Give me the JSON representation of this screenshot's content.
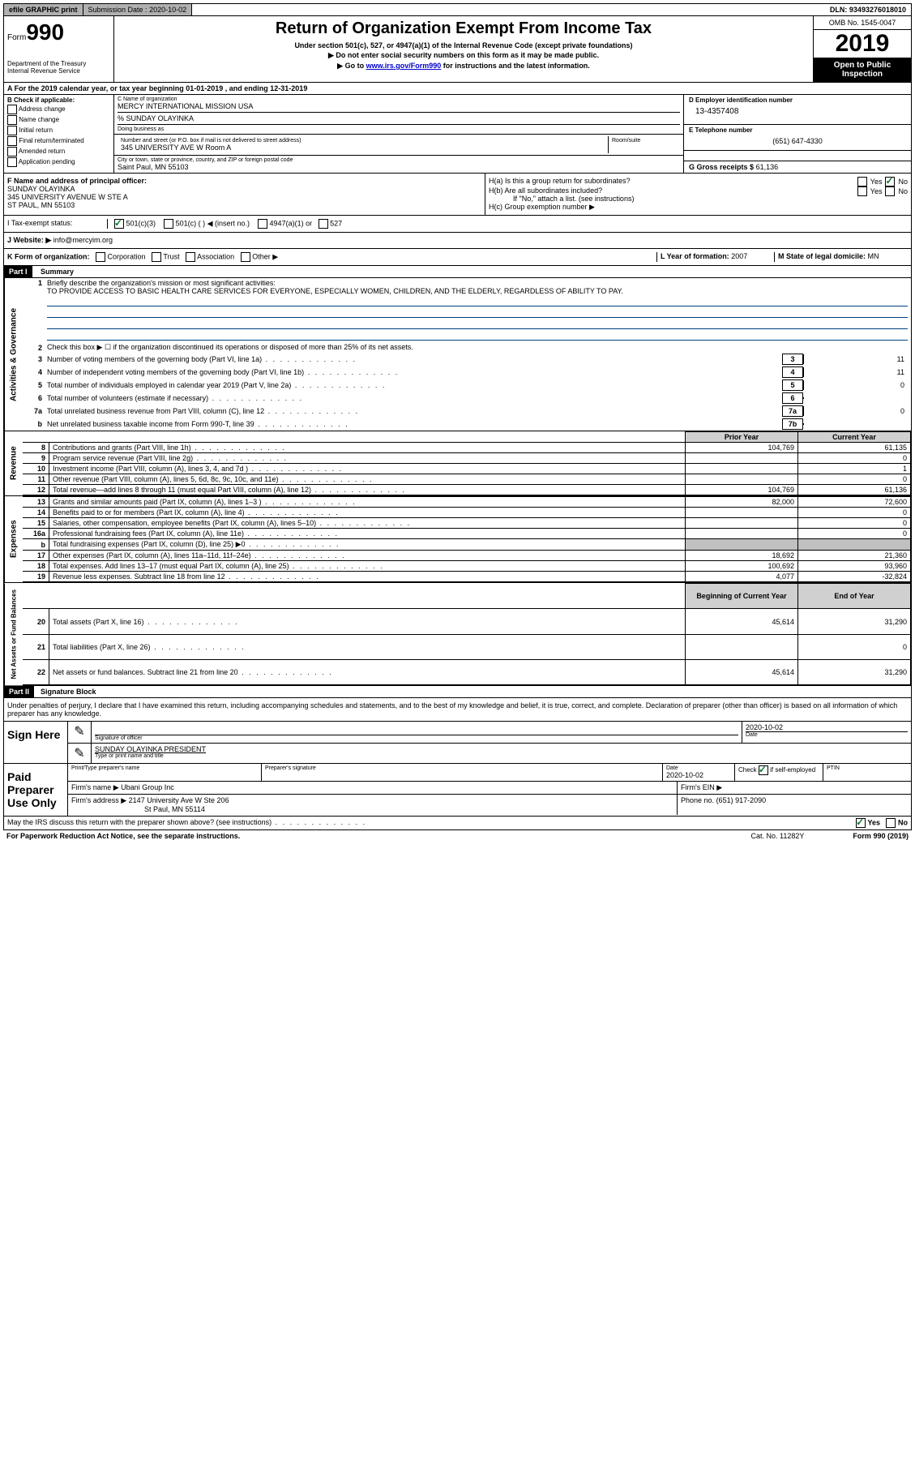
{
  "topbar": {
    "efile": "efile GRAPHIC print",
    "subdate_label": "Submission Date :",
    "subdate": "2020-10-02",
    "dln_label": "DLN:",
    "dln": "93493276018010"
  },
  "header": {
    "form_label": "Form",
    "form_num": "990",
    "dept": "Department of the Treasury\nInternal Revenue Service",
    "title": "Return of Organization Exempt From Income Tax",
    "sub": "Under section 501(c), 527, or 4947(a)(1) of the Internal Revenue Code (except private foundations)",
    "note1": "▶ Do not enter social security numbers on this form as it may be made public.",
    "note2_pre": "▶ Go to ",
    "note2_link": "www.irs.gov/Form990",
    "note2_post": " for instructions and the latest information.",
    "omb": "OMB No. 1545-0047",
    "year": "2019",
    "open": "Open to Public Inspection"
  },
  "rowA": "A For the 2019 calendar year, or tax year beginning 01-01-2019   , and ending 12-31-2019",
  "boxB": {
    "label": "B Check if applicable:",
    "items": [
      "Address change",
      "Name change",
      "Initial return",
      "Final return/terminated",
      "Amended return",
      "Application pending"
    ]
  },
  "boxC": {
    "name_label": "C Name of organization",
    "name": "MERCY INTERNATIONAL MISSION USA",
    "care_of": "% SUNDAY OLAYINKA",
    "dba_label": "Doing business as",
    "addr_label": "Number and street (or P.O. box if mail is not delivered to street address)",
    "addr": "345 UNIVERSITY AVE W Room A",
    "room_label": "Room/suite",
    "city_label": "City or town, state or province, country, and ZIP or foreign postal code",
    "city": "Saint Paul, MN  55103"
  },
  "boxD": {
    "label": "D Employer identification number",
    "val": "13-4357408"
  },
  "boxE": {
    "label": "E Telephone number",
    "val": "(651) 647-4330"
  },
  "boxG": {
    "label": "G Gross receipts $",
    "val": "61,136"
  },
  "boxF": {
    "label": "F  Name and address of principal officer:",
    "name": "SUNDAY OLAYINKA",
    "addr1": "345 UNIVERSITY AVENUE W STE A",
    "addr2": "ST PAUL, MN  55103"
  },
  "boxH": {
    "a": "H(a)  Is this a group return for subordinates?",
    "b": "H(b)  Are all subordinates included?",
    "b_note": "If \"No,\" attach a list. (see instructions)",
    "c": "H(c)  Group exemption number ▶"
  },
  "rowI": {
    "label": "I  Tax-exempt status:",
    "opts": [
      "501(c)(3)",
      "501(c) (  ) ◀ (insert no.)",
      "4947(a)(1) or",
      "527"
    ]
  },
  "rowJ": {
    "label": "J  Website: ▶",
    "val": "info@mercyim.org"
  },
  "rowK": {
    "label": "K Form of organization:",
    "opts": [
      "Corporation",
      "Trust",
      "Association",
      "Other ▶"
    ],
    "L_label": "L Year of formation:",
    "L_val": "2007",
    "M_label": "M State of legal domicile:",
    "M_val": "MN"
  },
  "part1": {
    "title": "Part I    Summary",
    "line1_label": "Briefly describe the organization's mission or most significant activities:",
    "mission": "TO PROVIDE ACCESS TO BASIC HEALTH CARE SERVICES FOR EVERYONE, ESPECIALLY WOMEN, CHILDREN, AND THE ELDERLY, REGARDLESS OF ABILITY TO PAY.",
    "line2": "Check this box ▶ ☐  if the organization discontinued its operations or disposed of more than 25% of its net assets.",
    "lines_gov": [
      {
        "n": "3",
        "t": "Number of voting members of the governing body (Part VI, line 1a)",
        "box": "3",
        "v": "11"
      },
      {
        "n": "4",
        "t": "Number of independent voting members of the governing body (Part VI, line 1b)",
        "box": "4",
        "v": "11"
      },
      {
        "n": "5",
        "t": "Total number of individuals employed in calendar year 2019 (Part V, line 2a)",
        "box": "5",
        "v": "0"
      },
      {
        "n": "6",
        "t": "Total number of volunteers (estimate if necessary)",
        "box": "6",
        "v": ""
      },
      {
        "n": "7a",
        "t": "Total unrelated business revenue from Part VIII, column (C), line 12",
        "box": "7a",
        "v": "0"
      },
      {
        "n": "b",
        "t": "Net unrelated business taxable income from Form 990-T, line 39",
        "box": "7b",
        "v": ""
      }
    ],
    "col_prior": "Prior Year",
    "col_current": "Current Year",
    "revenue": [
      {
        "n": "8",
        "t": "Contributions and grants (Part VIII, line 1h)",
        "p": "104,769",
        "c": "61,135"
      },
      {
        "n": "9",
        "t": "Program service revenue (Part VIII, line 2g)",
        "p": "",
        "c": "0"
      },
      {
        "n": "10",
        "t": "Investment income (Part VIII, column (A), lines 3, 4, and 7d )",
        "p": "",
        "c": "1"
      },
      {
        "n": "11",
        "t": "Other revenue (Part VIII, column (A), lines 5, 6d, 8c, 9c, 10c, and 11e)",
        "p": "",
        "c": "0"
      },
      {
        "n": "12",
        "t": "Total revenue—add lines 8 through 11 (must equal Part VIII, column (A), line 12)",
        "p": "104,769",
        "c": "61,136"
      }
    ],
    "expenses": [
      {
        "n": "13",
        "t": "Grants and similar amounts paid (Part IX, column (A), lines 1–3 )",
        "p": "82,000",
        "c": "72,600"
      },
      {
        "n": "14",
        "t": "Benefits paid to or for members (Part IX, column (A), line 4)",
        "p": "",
        "c": "0"
      },
      {
        "n": "15",
        "t": "Salaries, other compensation, employee benefits (Part IX, column (A), lines 5–10)",
        "p": "",
        "c": "0"
      },
      {
        "n": "16a",
        "t": "Professional fundraising fees (Part IX, column (A), line 11e)",
        "p": "",
        "c": "0"
      },
      {
        "n": "b",
        "t": "Total fundraising expenses (Part IX, column (D), line 25) ▶0",
        "p": "shaded",
        "c": "shaded"
      },
      {
        "n": "17",
        "t": "Other expenses (Part IX, column (A), lines 11a–11d, 11f–24e)",
        "p": "18,692",
        "c": "21,360"
      },
      {
        "n": "18",
        "t": "Total expenses. Add lines 13–17 (must equal Part IX, column (A), line 25)",
        "p": "100,692",
        "c": "93,960"
      },
      {
        "n": "19",
        "t": "Revenue less expenses. Subtract line 18 from line 12",
        "p": "4,077",
        "c": "-32,824"
      }
    ],
    "col_begin": "Beginning of Current Year",
    "col_end": "End of Year",
    "netassets": [
      {
        "n": "20",
        "t": "Total assets (Part X, line 16)",
        "p": "45,614",
        "c": "31,290"
      },
      {
        "n": "21",
        "t": "Total liabilities (Part X, line 26)",
        "p": "",
        "c": "0"
      },
      {
        "n": "22",
        "t": "Net assets or fund balances. Subtract line 21 from line 20",
        "p": "45,614",
        "c": "31,290"
      }
    ],
    "vert_gov": "Activities & Governance",
    "vert_rev": "Revenue",
    "vert_exp": "Expenses",
    "vert_net": "Net Assets or\nFund Balances"
  },
  "part2": {
    "title": "Part II    Signature Block",
    "decl": "Under penalties of perjury, I declare that I have examined this return, including accompanying schedules and statements, and to the best of my knowledge and belief, it is true, correct, and complete. Declaration of preparer (other than officer) is based on all information of which preparer has any knowledge.",
    "sign_here": "Sign Here",
    "sig_officer": "Signature of officer",
    "date_label": "Date",
    "sig_date": "2020-10-02",
    "officer_name": "SUNDAY OLAYINKA  PRESIDENT",
    "type_name": "Type or print name and title",
    "paid_prep": "Paid Preparer Use Only",
    "prep_name_label": "Print/Type preparer's name",
    "prep_sig_label": "Preparer's signature",
    "prep_date": "2020-10-02",
    "check_self": "Check ☑ if self-employed",
    "ptin": "PTIN",
    "firm_name_label": "Firm's name   ▶",
    "firm_name": "Ubani Group Inc",
    "firm_ein": "Firm's EIN ▶",
    "firm_addr_label": "Firm's address ▶",
    "firm_addr": "2147 University Ave W Ste 206",
    "firm_city": "St Paul, MN  55114",
    "phone_label": "Phone no.",
    "phone": "(651) 917-2090",
    "discuss": "May the IRS discuss this return with the preparer shown above? (see instructions)",
    "yes": "Yes",
    "no": "No"
  },
  "footer": {
    "left": "For Paperwork Reduction Act Notice, see the separate instructions.",
    "mid": "Cat. No. 11282Y",
    "right": "Form 990 (2019)"
  },
  "colors": {
    "link": "#0000cc",
    "mission_line": "#004080",
    "check_green": "#0a7a2a"
  }
}
